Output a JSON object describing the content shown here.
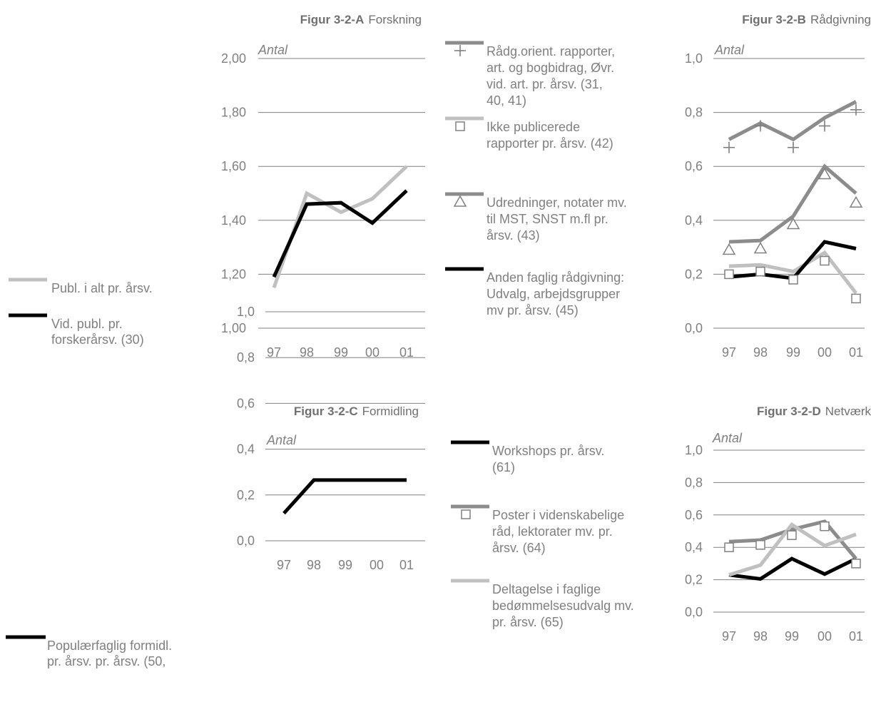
{
  "chart_data": [
    {
      "id": "A",
      "type": "line",
      "title_bold": "Figur 3-2-A",
      "title_rest": "Forskning",
      "unit_label": "Antal",
      "categories": [
        "97",
        "98",
        "99",
        "00",
        "01"
      ],
      "ylim": [
        1.0,
        2.0
      ],
      "yticks": [
        "1,00",
        "1,20",
        "1,40",
        "1,60",
        "1,80",
        "2,00"
      ],
      "grid": true,
      "legend_position": "left",
      "series": [
        {
          "name": "Publ. i alt pr. årsv.",
          "color": "#c0c0c0",
          "marker": "none",
          "values": [
            1.15,
            1.5,
            1.43,
            1.48,
            1.6
          ]
        },
        {
          "name": "Vid. publ. pr. forskerårsv. (30)",
          "color": "#000000",
          "marker": "none",
          "values": [
            1.19,
            1.46,
            1.465,
            1.39,
            1.51
          ]
        }
      ]
    },
    {
      "id": "B",
      "type": "line",
      "title_bold": "Figur 3-2-B",
      "title_rest": "Rådgivning",
      "unit_label": "Antal",
      "categories": [
        "97",
        "98",
        "99",
        "00",
        "01"
      ],
      "ylim": [
        0.0,
        1.0
      ],
      "yticks": [
        "0,0",
        "0,2",
        "0,4",
        "0,6",
        "0,8",
        "1,0"
      ],
      "grid": true,
      "legend_position": "left",
      "series": [
        {
          "name": "Rådg.orient. rapporter, art. og bogbidrag, Øvr. vid. art. pr. årsv. (31, 40, 41)",
          "color": "#8c8c8c",
          "marker": "plus",
          "values": [
            0.7,
            0.76,
            0.7,
            0.78,
            0.84
          ]
        },
        {
          "name": "Ikke publicerede rapporter pr. årsv. (42)",
          "color": "#c0c0c0",
          "marker": "square",
          "values": [
            0.23,
            0.235,
            0.21,
            0.28,
            0.13
          ]
        },
        {
          "name": "Udredninger, notater mv. til MST, SNST m.fl pr. årsv. (43)",
          "color": "#8c8c8c",
          "marker": "triangle",
          "values": [
            0.32,
            0.325,
            0.415,
            0.6,
            0.5
          ]
        },
        {
          "name": "Anden faglig rådgivning: Udvalg, arbejdsgrupper mv pr. årsv. (45)",
          "color": "#000000",
          "marker": "none",
          "values": [
            0.19,
            0.2,
            0.185,
            0.32,
            0.295
          ]
        }
      ],
      "marker_points": {
        "plus": [
          0.67,
          0.75,
          0.67,
          0.75,
          0.81
        ],
        "square": [
          0.2,
          0.21,
          0.18,
          0.25,
          0.11
        ],
        "triangle": [
          0.29,
          0.295,
          0.385,
          0.57,
          0.465
        ]
      }
    },
    {
      "id": "C",
      "type": "line",
      "title_bold": "Figur 3-2-C",
      "title_rest": "Formidling",
      "unit_label": "Antal",
      "categories": [
        "97",
        "98",
        "99",
        "00",
        "01"
      ],
      "ylim": [
        0.0,
        1.0
      ],
      "yticks": [
        "0,0",
        "0,2",
        "0,4",
        "0,6",
        "0,8",
        "1,0"
      ],
      "grid": true,
      "legend_position": "left",
      "series": [
        {
          "name": "Populærfaglig formidl. pr. årsv. pr. årsv. (50,",
          "color": "#000000",
          "marker": "none",
          "values": [
            0.12,
            0.265,
            0.265,
            0.265,
            0.265
          ]
        }
      ]
    },
    {
      "id": "D",
      "type": "line",
      "title_bold": "Figur 3-2-D",
      "title_rest": "Netværk",
      "unit_label": "Antal",
      "categories": [
        "97",
        "98",
        "99",
        "00",
        "01"
      ],
      "ylim": [
        0.0,
        1.0
      ],
      "yticks": [
        "0,0",
        "0,2",
        "0,4",
        "0,6",
        "0,8",
        "1,0"
      ],
      "grid": true,
      "legend_position": "left",
      "series": [
        {
          "name": "Workshops pr. årsv. (61)",
          "color": "#000000",
          "marker": "none",
          "values": [
            0.23,
            0.205,
            0.33,
            0.235,
            0.33
          ]
        },
        {
          "name": "Poster i videnskabelige råd, lektorater mv. pr. årsv.  (64)",
          "color": "#8c8c8c",
          "marker": "square",
          "values": [
            0.435,
            0.445,
            0.51,
            0.56,
            0.33
          ]
        },
        {
          "name": "Deltagelse i faglige bedømmelsesudvalg mv. pr. årsv. (65)",
          "color": "#c0c0c0",
          "marker": "none",
          "values": [
            0.23,
            0.29,
            0.54,
            0.41,
            0.48
          ]
        }
      ],
      "marker_points": {
        "square": [
          0.4,
          0.415,
          0.475,
          0.53,
          0.3
        ]
      }
    }
  ],
  "legends": {
    "A": [
      {
        "lines": [
          "Publ. i alt pr. årsv."
        ],
        "color": "#c0c0c0",
        "marker": "none"
      },
      {
        "lines": [
          "Vid. publ. pr.",
          "forskerårsv. (30)"
        ],
        "color": "#000000",
        "marker": "none"
      }
    ],
    "B": [
      {
        "lines": [
          "Rådg.orient. rapporter,",
          "art. og bogbidrag, Øvr.",
          "vid. art. pr. årsv. (31,",
          "40, 41)"
        ],
        "color": "#8c8c8c",
        "marker": "plus"
      },
      {
        "lines": [
          "Ikke publicerede",
          "rapporter pr. årsv. (42)"
        ],
        "color": "#c0c0c0",
        "marker": "square"
      },
      {
        "lines": [
          "Udredninger, notater mv.",
          "til MST, SNST m.fl pr.",
          "årsv. (43)"
        ],
        "color": "#8c8c8c",
        "marker": "triangle"
      },
      {
        "lines": [
          "Anden faglig rådgivning:",
          "Udvalg, arbejdsgrupper",
          "mv pr. årsv. (45)"
        ],
        "color": "#000000",
        "marker": "none"
      }
    ],
    "C": [
      {
        "lines": [
          "Populærfaglig formidl.",
          "pr. årsv. pr. årsv. (50,"
        ],
        "color": "#000000",
        "marker": "none"
      }
    ],
    "D": [
      {
        "lines": [
          "Workshops pr. årsv.",
          "(61)"
        ],
        "color": "#000000",
        "marker": "none"
      },
      {
        "lines": [
          "Poster i videnskabelige",
          "råd, lektorater mv. pr.",
          "årsv.  (64)"
        ],
        "color": "#8c8c8c",
        "marker": "square"
      },
      {
        "lines": [
          "Deltagelse i faglige",
          "bedømmelsesudvalg mv.",
          "pr. årsv. (65)"
        ],
        "color": "#c0c0c0",
        "marker": "none"
      }
    ]
  }
}
